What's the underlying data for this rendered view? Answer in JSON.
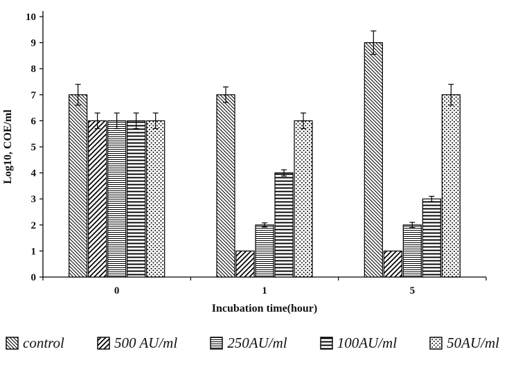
{
  "chart_data": {
    "type": "bar",
    "title": "",
    "xlabel": "Incubation time(hour)",
    "ylabel": "Log10, COE/ml",
    "ylim": [
      0,
      10
    ],
    "yticks": [
      0,
      1,
      2,
      3,
      4,
      5,
      6,
      7,
      8,
      9,
      10
    ],
    "categories": [
      "0",
      "1",
      "5"
    ],
    "grid": false,
    "legend_position": "bottom",
    "bar_outline_color": "#000000",
    "background_color": "#ffffff",
    "series": [
      {
        "name": "control",
        "pattern": "diagonal-down",
        "values": [
          7,
          7,
          9
        ],
        "errors": [
          0.4,
          0.3,
          0.45
        ]
      },
      {
        "name": "500 AU/ml",
        "pattern": "diagonal-up",
        "values": [
          6,
          1,
          1
        ],
        "errors": [
          0.3,
          0,
          0
        ]
      },
      {
        "name": "250AU/ml",
        "pattern": "horizontal-fine",
        "values": [
          6,
          2,
          2
        ],
        "errors": [
          0.3,
          0.08,
          0.1
        ]
      },
      {
        "name": "100AU/ml",
        "pattern": "horizontal-bold",
        "values": [
          6,
          4,
          3
        ],
        "errors": [
          0.3,
          0.12,
          0.1
        ]
      },
      {
        "name": "50AU/ml",
        "pattern": "dots",
        "values": [
          6,
          6,
          7
        ],
        "errors": [
          0.3,
          0.3,
          0.4
        ]
      }
    ]
  }
}
